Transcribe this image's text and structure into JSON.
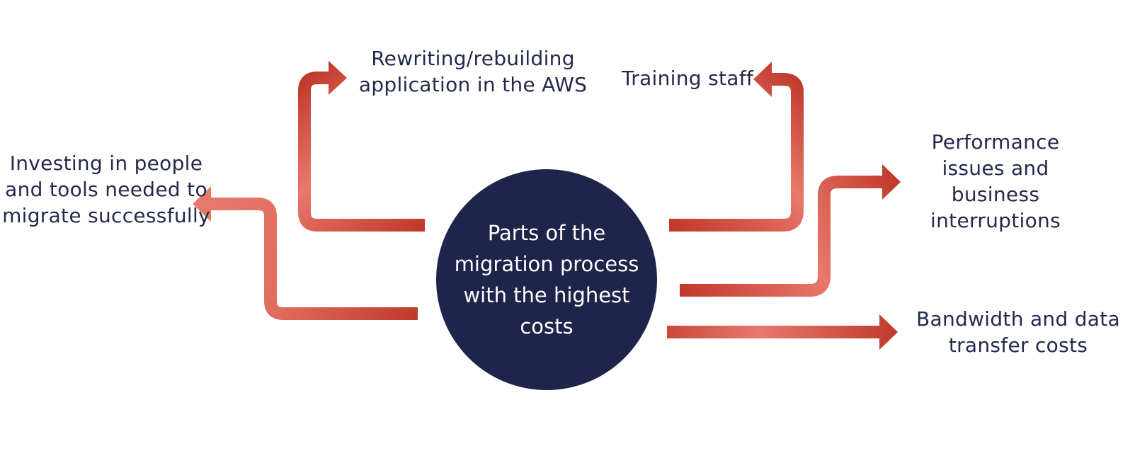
{
  "center": {
    "text": "Parts of the migration process with the highest costs"
  },
  "branches": {
    "rewriting": "Rewriting/rebuilding application in the AWS",
    "training": "Training staff",
    "investing": "Investing in people and tools needed to migrate successfully",
    "performance": "Performance issues and business interruptions",
    "bandwidth": "Bandwidth and data transfer costs"
  },
  "colors": {
    "arrow_dark": "#c0392b",
    "arrow_light": "#e8796c",
    "circle_fill": "#1e244a",
    "label_text": "#232a4a",
    "center_text": "#ffffff"
  }
}
